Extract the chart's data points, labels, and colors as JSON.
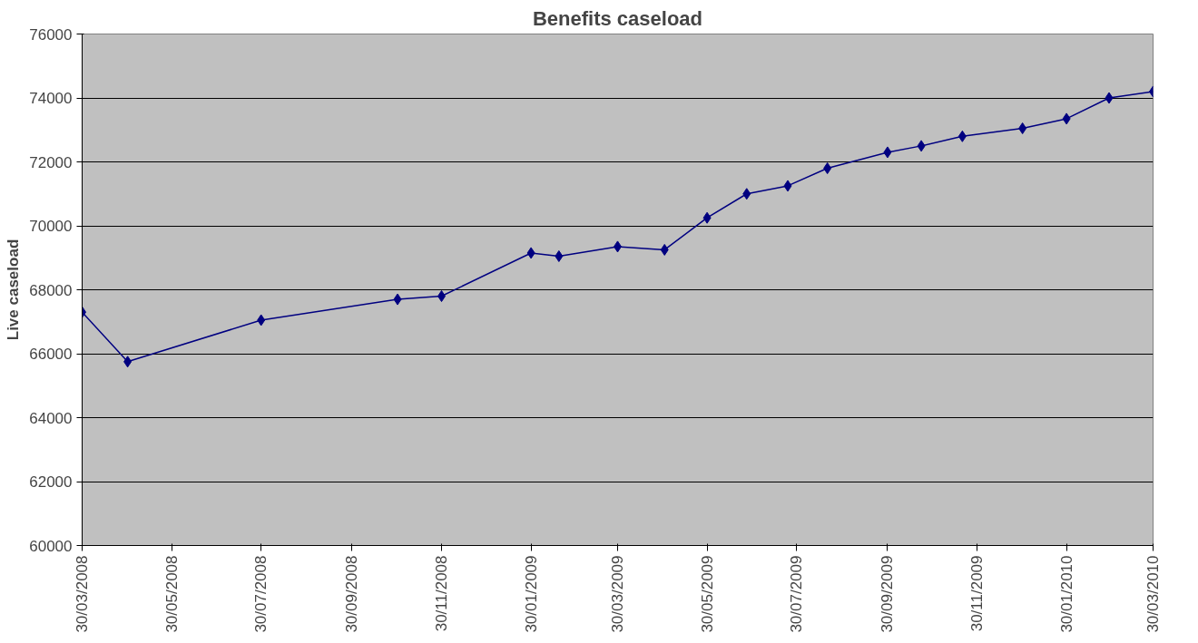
{
  "chart_data": {
    "type": "line",
    "title": "Benefits caseload",
    "ylabel": "Live caseload",
    "x": [
      "2008-03-30",
      "2008-04-30",
      "2008-07-30",
      "2008-10-31",
      "2008-11-30",
      "2009-01-30",
      "2009-02-18",
      "2009-03-30",
      "2009-05-01",
      "2009-05-30",
      "2009-06-26",
      "2009-07-24",
      "2009-08-20",
      "2009-09-30",
      "2009-10-23",
      "2009-11-20",
      "2009-12-31",
      "2010-01-30",
      "2010-02-28",
      "2010-03-30"
    ],
    "series": [
      {
        "color": "#000080",
        "values": [
          67300,
          65750,
          67050,
          67700,
          67800,
          69150,
          69050,
          69350,
          69250,
          70250,
          71000,
          71250,
          71800,
          72300,
          72500,
          72800,
          73050,
          73350,
          74000,
          74200
        ]
      }
    ],
    "xlim": [
      "2008-03-30",
      "2010-03-30"
    ],
    "xticks": [
      {
        "value": "2008-03-30",
        "label": "30/03/2008"
      },
      {
        "value": "2008-05-30",
        "label": "30/05/2008"
      },
      {
        "value": "2008-07-30",
        "label": "30/07/2008"
      },
      {
        "value": "2008-09-30",
        "label": "30/09/2008"
      },
      {
        "value": "2008-11-30",
        "label": "30/11/2008"
      },
      {
        "value": "2009-01-30",
        "label": "30/01/2009"
      },
      {
        "value": "2009-03-30",
        "label": "30/03/2009"
      },
      {
        "value": "2009-05-30",
        "label": "30/05/2009"
      },
      {
        "value": "2009-07-30",
        "label": "30/07/2009"
      },
      {
        "value": "2009-09-30",
        "label": "30/09/2009"
      },
      {
        "value": "2009-11-30",
        "label": "30/11/2009"
      },
      {
        "value": "2010-01-30",
        "label": "30/01/2010"
      },
      {
        "value": "2010-03-30",
        "label": "30/03/2010"
      }
    ],
    "ylim": [
      60000,
      76000
    ],
    "yticks": [
      60000,
      62000,
      64000,
      66000,
      68000,
      70000,
      72000,
      74000,
      76000
    ],
    "grid": "y",
    "marker": "diamond",
    "line_style": "solid"
  }
}
